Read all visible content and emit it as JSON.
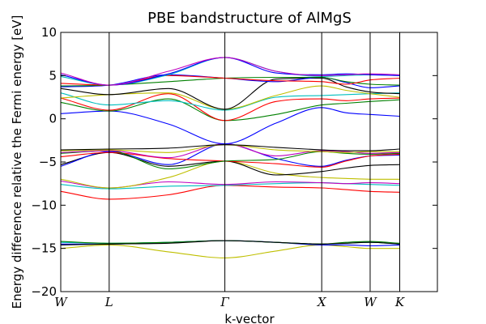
{
  "chart_data": {
    "type": "line",
    "title": "PBE bandstructure of AlMgS",
    "xlabel": "k-vector",
    "ylabel": "Energy difference relative the Fermi energy [eV]",
    "xlim": [
      0,
      7.0
    ],
    "ylim": [
      -20,
      10
    ],
    "yticks": [
      -20,
      -15,
      -10,
      -5,
      0,
      5,
      10
    ],
    "special_points": [
      {
        "label": "W",
        "x": 0
      },
      {
        "label": "L",
        "x": 0.9
      },
      {
        "label": "Γ",
        "x": 3.05
      },
      {
        "label": "X",
        "x": 4.85
      },
      {
        "label": "W",
        "x": 5.75
      },
      {
        "label": "K",
        "x": 6.3
      }
    ],
    "grid": false,
    "legend": "none",
    "x": [
      0,
      0.9,
      2.0,
      3.05,
      4.0,
      4.85,
      5.3,
      5.75,
      6.3
    ],
    "series": [
      {
        "color": "#bfbf00",
        "values": [
          -15.0,
          -14.6,
          -15.4,
          -16.1,
          -15.3,
          -14.6,
          -14.8,
          -15.0,
          -15.0
        ]
      },
      {
        "color": "#0000ff",
        "values": [
          -14.5,
          -14.5,
          -14.3,
          -14.1,
          -14.3,
          -14.6,
          -14.6,
          -14.7,
          -14.6
        ]
      },
      {
        "color": "#00bfbf",
        "values": [
          -14.3,
          -14.4,
          -14.3,
          -14.1,
          -14.3,
          -14.5,
          -14.4,
          -14.3,
          -14.5
        ]
      },
      {
        "color": "#008000",
        "values": [
          -14.2,
          -14.4,
          -14.3,
          -14.1,
          -14.3,
          -14.5,
          -14.3,
          -14.2,
          -14.4
        ]
      },
      {
        "color": "#000000",
        "values": [
          -14.6,
          -14.5,
          -14.4,
          -14.1,
          -14.3,
          -14.5,
          -14.4,
          -14.3,
          -14.5
        ]
      },
      {
        "color": "#ff0000",
        "values": [
          -8.4,
          -9.3,
          -8.8,
          -7.7,
          -7.9,
          -8.0,
          -8.2,
          -8.4,
          -8.5
        ]
      },
      {
        "color": "#00bfbf",
        "values": [
          -7.6,
          -8.1,
          -7.8,
          -7.7,
          -7.5,
          -7.4,
          -7.5,
          -7.6,
          -7.7
        ]
      },
      {
        "color": "#bf00bf",
        "values": [
          -7.2,
          -8.0,
          -7.3,
          -7.6,
          -7.3,
          -7.4,
          -7.5,
          -7.4,
          -7.5
        ]
      },
      {
        "color": "#bfbf00",
        "values": [
          -7.0,
          -8.0,
          -6.8,
          -4.9,
          -6.3,
          -6.8,
          -6.9,
          -7.0,
          -7.0
        ]
      },
      {
        "color": "#000000",
        "values": [
          -5.3,
          -3.9,
          -5.5,
          -4.9,
          -6.5,
          -6.1,
          -5.7,
          -5.4,
          -5.3
        ]
      },
      {
        "color": "#0000ff",
        "values": [
          -5.5,
          -3.8,
          -5.3,
          -2.9,
          -4.6,
          -5.5,
          -4.8,
          -4.3,
          -4.2
        ]
      },
      {
        "color": "#ff0000",
        "values": [
          -4.4,
          -3.9,
          -4.6,
          -4.9,
          -5.2,
          -5.6,
          -4.9,
          -4.3,
          -4.1
        ]
      },
      {
        "color": "#008000",
        "values": [
          -4.0,
          -3.7,
          -5.8,
          -4.9,
          -4.7,
          -3.8,
          -4.0,
          -4.1,
          -4.0
        ]
      },
      {
        "color": "#bf00bf",
        "values": [
          -3.9,
          -3.7,
          -4.5,
          -2.9,
          -4.3,
          -3.7,
          -3.8,
          -4.0,
          -3.9
        ]
      },
      {
        "color": "#bfbf00",
        "values": [
          -3.7,
          -3.6,
          -3.9,
          -3.0,
          -3.6,
          -3.8,
          -3.9,
          -3.8,
          -3.8
        ]
      },
      {
        "color": "#000000",
        "values": [
          -3.6,
          -3.5,
          -3.4,
          -3.0,
          -3.3,
          -3.6,
          -3.7,
          -3.7,
          -3.5
        ]
      },
      {
        "color": "#0000ff",
        "values": [
          0.6,
          0.9,
          -0.6,
          -2.9,
          -0.5,
          1.3,
          0.7,
          0.5,
          0.3
        ]
      },
      {
        "color": "#008000",
        "values": [
          1.9,
          0.9,
          2.3,
          -0.2,
          0.5,
          1.6,
          1.8,
          2.0,
          2.2
        ]
      },
      {
        "color": "#ff0000",
        "values": [
          2.4,
          1.0,
          2.9,
          -0.2,
          2.0,
          2.3,
          2.1,
          2.3,
          2.4
        ]
      },
      {
        "color": "#00bfbf",
        "values": [
          3.0,
          1.6,
          2.1,
          1.0,
          2.5,
          2.7,
          2.8,
          2.9,
          3.0
        ]
      },
      {
        "color": "#bfbf00",
        "values": [
          2.4,
          2.8,
          3.0,
          1.1,
          2.7,
          3.8,
          3.3,
          2.9,
          2.5
        ]
      },
      {
        "color": "#000000",
        "values": [
          3.5,
          2.8,
          3.5,
          1.1,
          4.6,
          4.7,
          3.7,
          3.1,
          2.9
        ]
      },
      {
        "color": "#0000ff",
        "values": [
          3.7,
          3.9,
          5.1,
          4.7,
          4.3,
          4.8,
          4.2,
          3.6,
          3.8
        ]
      },
      {
        "color": "#008000",
        "values": [
          3.8,
          3.9,
          4.3,
          4.7,
          4.8,
          4.8,
          4.3,
          4.0,
          3.9
        ]
      },
      {
        "color": "#ff0000",
        "values": [
          4.1,
          3.9,
          5.0,
          4.7,
          4.4,
          4.3,
          4.0,
          4.5,
          4.7
        ]
      },
      {
        "color": "#00bfbf",
        "values": [
          4.9,
          3.9,
          5.1,
          7.1,
          5.5,
          4.9,
          5.0,
          5.1,
          5.0
        ]
      },
      {
        "color": "#0000ff",
        "values": [
          5.1,
          3.9,
          5.2,
          7.1,
          5.3,
          5.1,
          5.2,
          5.1,
          5.0
        ]
      },
      {
        "color": "#bf00bf",
        "values": [
          5.3,
          3.9,
          5.5,
          7.1,
          5.5,
          5.0,
          5.1,
          5.2,
          5.1
        ]
      }
    ]
  }
}
